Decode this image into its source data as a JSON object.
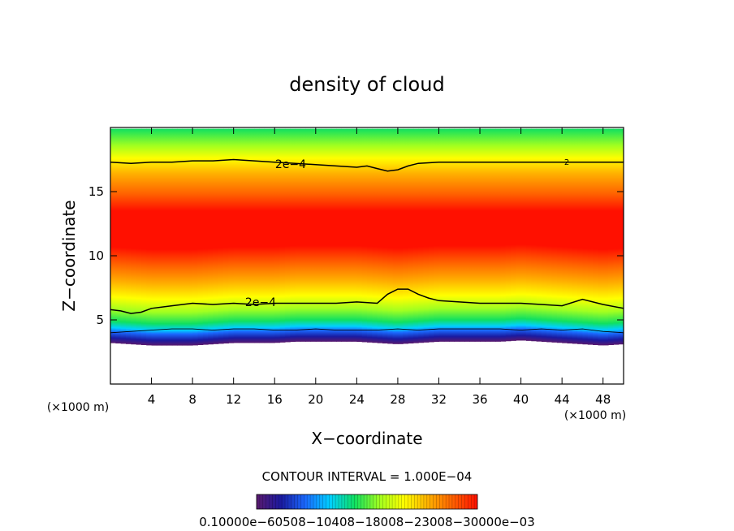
{
  "chart_data": {
    "type": "heatmap",
    "title": "density of cloud",
    "xlabel": "X−coordinate",
    "ylabel": "Z−coordinate",
    "x_unit_label": "(×1000 m)",
    "y_unit_label": "(×1000 m)",
    "xlim": [
      0,
      50
    ],
    "ylim": [
      0,
      20
    ],
    "x_ticks": [
      4,
      8,
      12,
      16,
      20,
      24,
      28,
      32,
      36,
      40,
      44,
      48
    ],
    "y_ticks": [
      5,
      10,
      15
    ],
    "contour_interval_label": "CONTOUR INTERVAL = 1.000E−04",
    "contour_labels": [
      "2e−4",
      "2e−4",
      "2"
    ],
    "colorbar_labels_text": "0.10000e−60508−10408−18008−23008−30000e−03",
    "colormap": [
      "#5a1a6e",
      "#1a1aa0",
      "#1a6aff",
      "#00d0ff",
      "#10e060",
      "#a0ff20",
      "#ffff00",
      "#ffb000",
      "#ff6000",
      "#ff1000"
    ],
    "cloud_profile": {
      "x": [
        0,
        2,
        4,
        6,
        8,
        10,
        12,
        14,
        16,
        18,
        20,
        22,
        24,
        26,
        28,
        30,
        32,
        34,
        36,
        38,
        40,
        42,
        44,
        46,
        48,
        50
      ],
      "base_km": [
        3.2,
        3.1,
        3.0,
        3.0,
        3.0,
        3.1,
        3.2,
        3.2,
        3.2,
        3.3,
        3.3,
        3.3,
        3.3,
        3.2,
        3.1,
        3.2,
        3.3,
        3.3,
        3.3,
        3.3,
        3.4,
        3.3,
        3.2,
        3.1,
        3.0,
        3.1
      ],
      "top_km": [
        19.9,
        19.9,
        19.9,
        19.9,
        19.9,
        19.9,
        19.9,
        19.9,
        19.9,
        19.9,
        19.9,
        19.9,
        19.9,
        19.9,
        19.9,
        19.9,
        19.9,
        19.9,
        19.9,
        19.9,
        19.9,
        19.9,
        19.9,
        19.9,
        19.9,
        19.9
      ]
    },
    "contours": [
      {
        "level": "2e−4 upper",
        "x": [
          0,
          2,
          4,
          6,
          8,
          10,
          12,
          14,
          16,
          18,
          20,
          22,
          24,
          25,
          26,
          27,
          28,
          29,
          30,
          32,
          34,
          36,
          38,
          40,
          42,
          44,
          46,
          48,
          50
        ],
        "z": [
          17.3,
          17.2,
          17.3,
          17.3,
          17.4,
          17.4,
          17.5,
          17.4,
          17.3,
          17.2,
          17.1,
          17.0,
          16.9,
          17.0,
          16.8,
          16.6,
          16.7,
          17.0,
          17.2,
          17.3,
          17.3,
          17.3,
          17.3,
          17.3,
          17.3,
          17.3,
          17.3,
          17.3,
          17.3
        ]
      },
      {
        "level": "2e−4 lower",
        "x": [
          0,
          1,
          2,
          3,
          4,
          6,
          8,
          10,
          12,
          14,
          16,
          18,
          20,
          22,
          24,
          26,
          27,
          28,
          29,
          30,
          31,
          32,
          34,
          36,
          38,
          40,
          42,
          44,
          46,
          48,
          50
        ],
        "z": [
          5.8,
          5.7,
          5.5,
          5.6,
          5.9,
          6.1,
          6.3,
          6.2,
          6.3,
          6.2,
          6.3,
          6.3,
          6.3,
          6.3,
          6.4,
          6.3,
          7.0,
          7.4,
          7.4,
          7.0,
          6.7,
          6.5,
          6.4,
          6.3,
          6.3,
          6.3,
          6.2,
          6.1,
          6.6,
          6.2,
          5.9
        ]
      },
      {
        "level": "1e−4",
        "x": [
          0,
          2,
          4,
          6,
          8,
          10,
          12,
          14,
          16,
          18,
          20,
          22,
          24,
          26,
          28,
          30,
          32,
          34,
          36,
          38,
          40,
          42,
          44,
          46,
          48,
          50
        ],
        "z": [
          4.0,
          4.1,
          4.2,
          4.3,
          4.3,
          4.2,
          4.3,
          4.3,
          4.2,
          4.2,
          4.3,
          4.2,
          4.2,
          4.2,
          4.3,
          4.2,
          4.3,
          4.3,
          4.3,
          4.3,
          4.2,
          4.3,
          4.2,
          4.3,
          4.1,
          4.0
        ]
      }
    ],
    "grid": false,
    "legend": "colorbar bottom"
  }
}
